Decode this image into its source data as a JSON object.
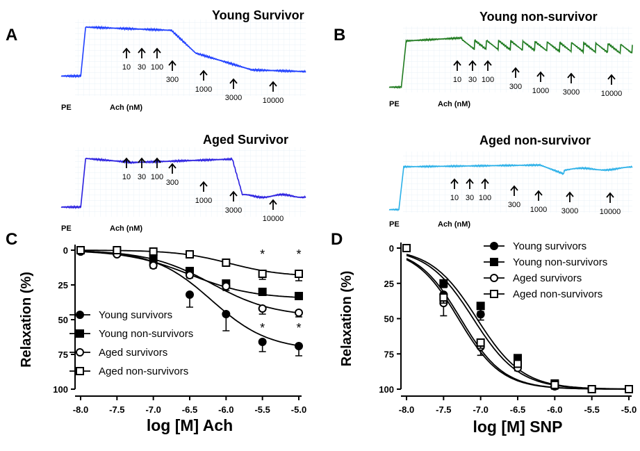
{
  "panels": {
    "A": {
      "label": "A",
      "traces": [
        {
          "title": "Young Survivor",
          "color": "#1f3fff",
          "pe": "PE",
          "ach": "Ach (nM)",
          "doses": [
            "10",
            "30",
            "100",
            "300",
            "1000",
            "3000",
            "10000"
          ]
        },
        {
          "title": "Aged Survivor",
          "color": "#2a1fe0",
          "pe": "PE",
          "ach": "Ach (nM)",
          "doses": [
            "10",
            "30",
            "100",
            "300",
            "1000",
            "3000",
            "10000"
          ]
        }
      ]
    },
    "B": {
      "label": "B",
      "traces": [
        {
          "title": "Young non-survivor",
          "color": "#1e7a1e",
          "pe": "PE",
          "ach": "Ach (nM)",
          "doses": [
            "10",
            "30",
            "100",
            "300",
            "1000",
            "3000",
            "10000"
          ]
        },
        {
          "title": "Aged non-survivor",
          "color": "#2ab0e8",
          "pe": "PE",
          "ach": "Ach (nM)",
          "doses": [
            "10",
            "30",
            "100",
            "300",
            "1000",
            "3000",
            "10000"
          ]
        }
      ]
    },
    "C": {
      "label": "C"
    },
    "D": {
      "label": "D"
    }
  },
  "chart_data": [
    {
      "type": "line",
      "panel": "C",
      "xlabel": "log [M] Ach",
      "ylabel": "Relaxation (%)",
      "xlim": [
        -8.0,
        -5.0
      ],
      "ylim": [
        0,
        100
      ],
      "y_inverted": true,
      "x_ticks": [
        "-8.0",
        "-7.5",
        "-7.0",
        "-6.5",
        "-6.0",
        "-5.5",
        "-5.0"
      ],
      "y_ticks": [
        "0",
        "25",
        "50",
        "75",
        "100"
      ],
      "x": [
        -8.0,
        -7.5,
        -7.0,
        -6.5,
        -6.0,
        -5.5,
        -5.0
      ],
      "legend_position": "bottom-left",
      "series": [
        {
          "name": "Young survivors",
          "marker": "filled-circle",
          "values": [
            1,
            2,
            10,
            32,
            46,
            66,
            69
          ],
          "errors": [
            0,
            1,
            2,
            9,
            12,
            7,
            7
          ]
        },
        {
          "name": "Young non-survivors",
          "marker": "filled-square",
          "values": [
            0,
            1,
            6,
            15,
            24,
            30,
            33
          ],
          "errors": [
            0,
            1,
            1,
            2,
            3,
            2,
            2
          ]
        },
        {
          "name": "Aged survivors",
          "marker": "open-circle",
          "values": [
            1,
            3,
            11,
            18,
            26,
            42,
            45
          ],
          "errors": [
            0,
            1,
            2,
            2,
            3,
            4,
            3
          ]
        },
        {
          "name": "Aged non-survivors",
          "marker": "open-square",
          "values": [
            0,
            0,
            1,
            3,
            9,
            17,
            17
          ],
          "errors": [
            0,
            0,
            1,
            1,
            2,
            4,
            5
          ]
        }
      ],
      "fits": [
        {
          "series": "Young survivors",
          "bottom": 0,
          "top": 72,
          "logEC50": -6.2,
          "hill": 1.1
        },
        {
          "series": "Young non-survivors",
          "bottom": 0,
          "top": 35,
          "logEC50": -6.5,
          "hill": 1.0
        },
        {
          "series": "Aged survivors",
          "bottom": 0,
          "top": 48,
          "logEC50": -6.2,
          "hill": 1.0
        },
        {
          "series": "Aged non-survivors",
          "bottom": 0,
          "top": 19,
          "logEC50": -5.95,
          "hill": 1.2
        }
      ],
      "annotations": [
        {
          "text": "*",
          "x": -5.5,
          "y": 3
        },
        {
          "text": "*",
          "x": -5.0,
          "y": 3
        },
        {
          "text": "*",
          "x": -5.5,
          "y": 56
        },
        {
          "text": "*",
          "x": -5.0,
          "y": 56
        }
      ]
    },
    {
      "type": "line",
      "panel": "D",
      "xlabel": "log [M] SNP",
      "ylabel": "Relaxation (%)",
      "xlim": [
        -8.0,
        -5.0
      ],
      "ylim": [
        0,
        100
      ],
      "y_inverted": true,
      "x_ticks": [
        "-8.0",
        "-7.5",
        "-7.0",
        "-6.5",
        "-6.0",
        "-5.5",
        "-5.0"
      ],
      "y_ticks": [
        "0",
        "25",
        "50",
        "75",
        "100"
      ],
      "x": [
        -8.0,
        -7.5,
        -7.0,
        -6.5,
        -6.0,
        -5.5,
        -5.0
      ],
      "legend_position": "top-right",
      "series": [
        {
          "name": "Young survivors",
          "marker": "filled-circle",
          "values": [
            0,
            33,
            47,
            83,
            98,
            100,
            100
          ],
          "errors": [
            0,
            3,
            4,
            2,
            2,
            0,
            0
          ]
        },
        {
          "name": "Young non-survivors",
          "marker": "filled-square",
          "values": [
            0,
            25,
            41,
            78,
            96,
            100,
            100
          ],
          "errors": [
            0,
            3,
            4,
            2,
            2,
            0,
            0
          ]
        },
        {
          "name": "Aged survivors",
          "marker": "open-circle",
          "values": [
            0,
            39,
            70,
            85,
            98,
            100,
            100
          ],
          "errors": [
            0,
            9,
            6,
            2,
            2,
            0,
            0
          ]
        },
        {
          "name": "Aged non-survivors",
          "marker": "open-square",
          "values": [
            0,
            35,
            67,
            82,
            97,
            100,
            100
          ],
          "errors": [
            0,
            4,
            4,
            2,
            2,
            0,
            0
          ]
        }
      ],
      "fits": [
        {
          "series": "Young survivors",
          "bottom": 0,
          "top": 100,
          "logEC50": -7.1,
          "hill": 1.4
        },
        {
          "series": "Young non-survivors",
          "bottom": 0,
          "top": 100,
          "logEC50": -7.05,
          "hill": 1.4
        },
        {
          "series": "Aged survivors",
          "bottom": 0,
          "top": 100,
          "logEC50": -7.3,
          "hill": 1.5
        },
        {
          "series": "Aged non-survivors",
          "bottom": 0,
          "top": 100,
          "logEC50": -7.27,
          "hill": 1.5
        }
      ]
    }
  ]
}
